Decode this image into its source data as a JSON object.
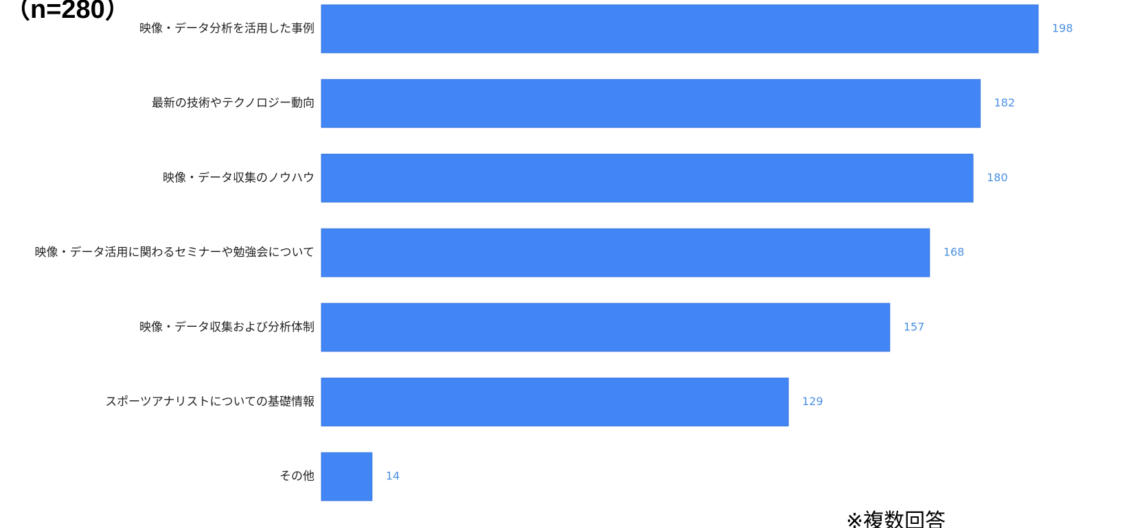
{
  "chart_data": {
    "type": "bar",
    "orientation": "horizontal",
    "title": "（n=280）",
    "note": "※複数回答",
    "categories": [
      "映像・データ分析を活用した事例",
      "最新の技術やテクノロジー動向",
      "映像・データ収集のノウハウ",
      "映像・データ活用に関わるセミナーや勉強会について",
      "映像・データ収集および分析体制",
      "スポーツアナリストについての基礎情報",
      "その他"
    ],
    "values": [
      198,
      182,
      180,
      168,
      157,
      129,
      14
    ],
    "xlim": [
      0,
      198
    ],
    "grid": false,
    "bar_color": "#4285f4",
    "value_label_color": "#4a90e2"
  }
}
